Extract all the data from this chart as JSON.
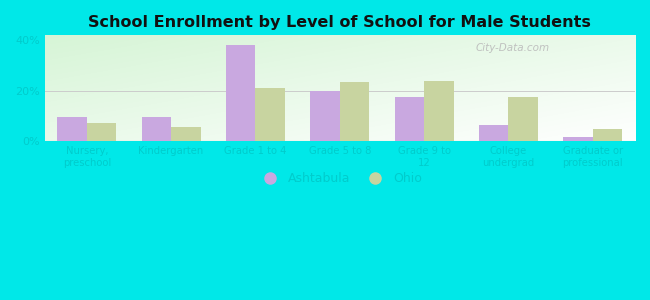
{
  "title": "School Enrollment by Level of School for Male Students",
  "categories": [
    "Nursery,\npreschool",
    "Kindergarten",
    "Grade 1 to 4",
    "Grade 5 to 8",
    "Grade 9 to\n12",
    "College\nundergrad",
    "Graduate or\nprofessional"
  ],
  "ashtabula": [
    9.5,
    9.5,
    38.0,
    20.0,
    17.5,
    6.5,
    1.5
  ],
  "ohio": [
    7.0,
    5.5,
    21.0,
    23.5,
    24.0,
    17.5,
    5.0
  ],
  "ashtabula_color": "#c9a8e0",
  "ohio_color": "#c8d4a0",
  "background_color": "#00e8e8",
  "ylim": [
    0,
    42
  ],
  "yticks": [
    0,
    20,
    40
  ],
  "ytick_labels": [
    "0%",
    "20%",
    "40%"
  ],
  "bar_width": 0.35,
  "legend_labels": [
    "Ashtabula",
    "Ohio"
  ],
  "watermark": "City-Data.com",
  "tick_label_color": "#00cccc",
  "title_color": "#111111"
}
